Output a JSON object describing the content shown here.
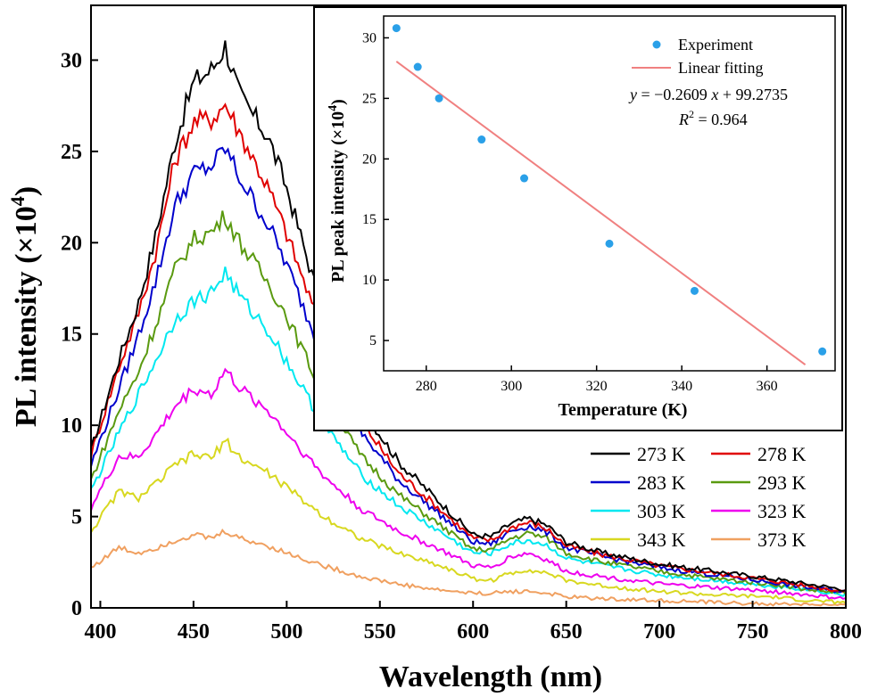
{
  "chart_data": [
    {
      "type": "line",
      "xlabel": "Wavelength (nm)",
      "ylabel_main": "PL intensity (×10",
      "ylabel_sup": "4",
      "ylabel_close": ")",
      "xlim": [
        395,
        800
      ],
      "ylim": [
        0,
        33
      ],
      "xticks": [
        400,
        450,
        500,
        550,
        600,
        650,
        700,
        750,
        800
      ],
      "yticks": [
        0,
        5,
        10,
        15,
        20,
        25,
        30
      ],
      "legend_position": "lower-right",
      "series": [
        {
          "name": "273 K",
          "color": "#000000",
          "peak": 30.8,
          "x": [
            395,
            410,
            420,
            430,
            440,
            450,
            460,
            467,
            475,
            490,
            500,
            520,
            540,
            560,
            580,
            600,
            610,
            620,
            630,
            640,
            650,
            670,
            700,
            730,
            760,
            780,
            800
          ],
          "y": [
            8.6,
            13.6,
            16.5,
            20.5,
            25.5,
            28.8,
            29.5,
            30.8,
            28.0,
            25.8,
            23.0,
            16.0,
            11.0,
            8.0,
            6.0,
            4.0,
            3.9,
            4.6,
            4.9,
            4.5,
            3.6,
            3.0,
            2.4,
            2.0,
            1.6,
            1.3,
            1.0
          ]
        },
        {
          "name": "278 K",
          "color": "#e00000",
          "peak": 27.6,
          "x": [
            395,
            410,
            420,
            430,
            440,
            450,
            460,
            467,
            475,
            490,
            500,
            520,
            540,
            560,
            580,
            600,
            610,
            620,
            630,
            640,
            650,
            670,
            700,
            730,
            760,
            780,
            800
          ],
          "y": [
            8.4,
            13.2,
            16.0,
            19.6,
            24.5,
            26.6,
            26.8,
            27.6,
            26.0,
            23.0,
            20.5,
            14.8,
            10.2,
            7.4,
            5.6,
            3.8,
            3.7,
            4.4,
            4.7,
            4.3,
            3.4,
            2.9,
            2.3,
            1.9,
            1.5,
            1.2,
            0.9
          ]
        },
        {
          "name": "283 K",
          "color": "#0000cc",
          "peak": 25.2,
          "x": [
            395,
            410,
            420,
            430,
            440,
            450,
            460,
            467,
            475,
            490,
            500,
            520,
            540,
            560,
            580,
            600,
            610,
            620,
            630,
            640,
            650,
            670,
            700,
            730,
            760,
            780,
            800
          ],
          "y": [
            7.8,
            12.0,
            14.8,
            18.0,
            22.0,
            23.8,
            24.2,
            25.2,
            23.5,
            21.0,
            18.8,
            13.6,
            9.6,
            7.0,
            5.3,
            3.6,
            3.5,
            4.2,
            4.5,
            4.1,
            3.3,
            2.8,
            2.2,
            1.8,
            1.4,
            1.1,
            0.9
          ]
        },
        {
          "name": "293 K",
          "color": "#5a9a10",
          "peak": 21.5,
          "x": [
            395,
            410,
            420,
            430,
            440,
            450,
            460,
            467,
            475,
            490,
            500,
            520,
            540,
            560,
            580,
            600,
            610,
            620,
            630,
            640,
            650,
            670,
            700,
            730,
            760,
            780,
            800
          ],
          "y": [
            7.0,
            10.8,
            12.8,
            15.6,
            18.5,
            20.2,
            20.6,
            21.5,
            20.0,
            17.8,
            16.0,
            11.6,
            8.3,
            6.2,
            4.7,
            3.2,
            3.2,
            3.8,
            4.1,
            3.8,
            3.0,
            2.5,
            2.0,
            1.6,
            1.3,
            1.0,
            0.8
          ]
        },
        {
          "name": "303 K",
          "color": "#00e8f0",
          "peak": 18.4,
          "x": [
            395,
            410,
            420,
            430,
            440,
            450,
            460,
            467,
            475,
            490,
            500,
            520,
            540,
            560,
            580,
            600,
            610,
            620,
            630,
            640,
            650,
            670,
            700,
            730,
            760,
            780,
            800
          ],
          "y": [
            6.4,
            9.6,
            11.6,
            13.6,
            15.8,
            16.8,
            17.3,
            18.4,
            17.0,
            15.2,
            13.5,
            10.0,
            7.3,
            5.6,
            4.3,
            3.0,
            3.0,
            3.5,
            3.7,
            3.4,
            2.7,
            2.3,
            1.8,
            1.5,
            1.2,
            1.0,
            0.7
          ]
        },
        {
          "name": "323 K",
          "color": "#ee00ee",
          "peak": 13.0,
          "x": [
            395,
            410,
            420,
            430,
            440,
            450,
            460,
            467,
            475,
            490,
            500,
            520,
            540,
            560,
            580,
            600,
            610,
            620,
            630,
            640,
            650,
            670,
            700,
            730,
            760,
            780,
            800
          ],
          "y": [
            5.5,
            8.3,
            8.2,
            9.5,
            11.0,
            12.0,
            11.7,
            13.0,
            12.0,
            10.8,
            9.6,
            7.2,
            5.4,
            4.2,
            3.3,
            2.3,
            2.2,
            2.8,
            3.0,
            2.6,
            2.0,
            1.7,
            1.3,
            1.1,
            0.9,
            0.7,
            0.5
          ]
        },
        {
          "name": "343 K",
          "color": "#d8d820",
          "peak": 9.2,
          "x": [
            395,
            410,
            420,
            430,
            440,
            450,
            460,
            467,
            475,
            490,
            500,
            520,
            540,
            560,
            580,
            600,
            610,
            620,
            630,
            640,
            650,
            670,
            700,
            730,
            760,
            780,
            800
          ],
          "y": [
            4.2,
            6.4,
            6.0,
            6.8,
            7.8,
            8.4,
            8.2,
            9.2,
            8.2,
            7.4,
            6.6,
            5.0,
            3.8,
            3.0,
            2.4,
            1.6,
            1.5,
            1.9,
            2.1,
            1.9,
            1.5,
            1.2,
            0.9,
            0.7,
            0.6,
            0.4,
            0.3
          ]
        },
        {
          "name": "373 K",
          "color": "#f0a060",
          "peak": 4.2,
          "x": [
            395,
            410,
            420,
            430,
            440,
            450,
            460,
            467,
            475,
            490,
            500,
            520,
            540,
            560,
            580,
            600,
            610,
            620,
            630,
            640,
            650,
            670,
            700,
            730,
            760,
            780,
            800
          ],
          "y": [
            2.2,
            3.3,
            3.0,
            3.3,
            3.7,
            4.0,
            3.8,
            4.2,
            3.8,
            3.4,
            3.0,
            2.3,
            1.7,
            1.3,
            1.0,
            0.8,
            0.8,
            0.9,
            0.9,
            0.8,
            0.6,
            0.5,
            0.4,
            0.3,
            0.2,
            0.2,
            0.1
          ]
        }
      ]
    },
    {
      "type": "scatter",
      "xlabel": "Temperature (K)",
      "ylabel_main": "PL peak intensity (×10",
      "ylabel_sup": "4",
      "ylabel_close": ")",
      "xlim": [
        270,
        376
      ],
      "ylim": [
        2.5,
        31.8
      ],
      "xticks": [
        280,
        300,
        320,
        340,
        360
      ],
      "yticks": [
        5,
        10,
        15,
        20,
        25,
        30
      ],
      "legend_position": "top-right",
      "series": [
        {
          "name": "Experiment",
          "color": "#2aa0e8",
          "x": [
            273,
            278,
            283,
            293,
            303,
            323,
            343,
            373
          ],
          "y": [
            30.8,
            27.6,
            25.0,
            21.6,
            18.4,
            13.0,
            9.1,
            4.1
          ]
        },
        {
          "name": "Linear fitting",
          "color": "#f08080",
          "slope": -0.2609,
          "intercept": 99.2735,
          "x_range": [
            273,
            369
          ]
        }
      ],
      "equation_prefix": "y",
      "equation_mid": " = −0.2609 ",
      "equation_x": "x",
      "equation_suffix": " + 99.2735",
      "r2_label": "R",
      "r2_sup": "2",
      "r2_value": " = 0.964"
    }
  ]
}
